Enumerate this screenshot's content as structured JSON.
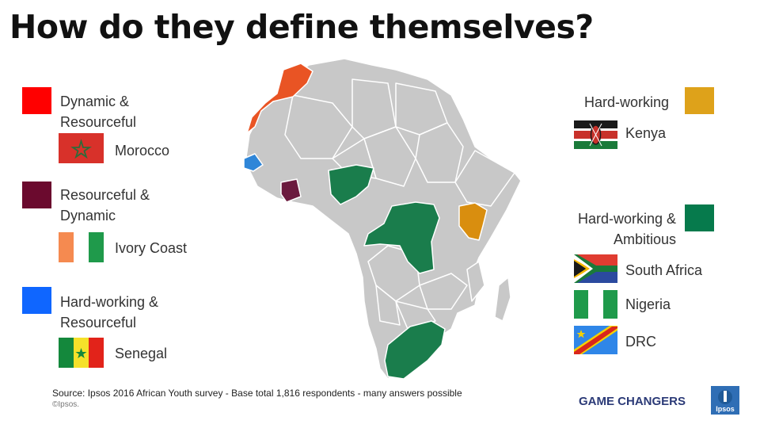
{
  "title": "How do they define themselves?",
  "legend_left": [
    {
      "label_1": "Dynamic &",
      "label_2": "Resourceful",
      "color": "#ff0000",
      "country": "Morocco"
    },
    {
      "label_1": "Resourceful  &",
      "label_2": "Dynamic",
      "color": "#6b0a2e",
      "country": "Ivory Coast"
    },
    {
      "label_1": "Hard-working &",
      "label_2": "Resourceful",
      "color": "#0f66ff",
      "country": "Senegal"
    }
  ],
  "legend_right": [
    {
      "label_1": "Hard-working",
      "label_2": "",
      "color": "#dea21a",
      "countries": [
        "Kenya"
      ]
    },
    {
      "label_1": "Hard-working  &",
      "label_2": "Ambitious",
      "color": "#067a4c",
      "countries": [
        "South Africa",
        "Nigeria",
        "DRC"
      ]
    }
  ],
  "map_colors": {
    "default": "#c8c8c8",
    "border": "#ffffff",
    "morocco": "#e95424",
    "ivory_coast": "#6b1a3e",
    "senegal": "#2f86d8",
    "kenya": "#d98e0f",
    "green": "#1a7d4c"
  },
  "source": "Source: Ipsos  2016 African Youth survey - Base total 1,816 respondents - many answers possible",
  "copyright": "©Ipsos.",
  "brand": "GAME CHANGERS",
  "logo_text": "Ipsos"
}
